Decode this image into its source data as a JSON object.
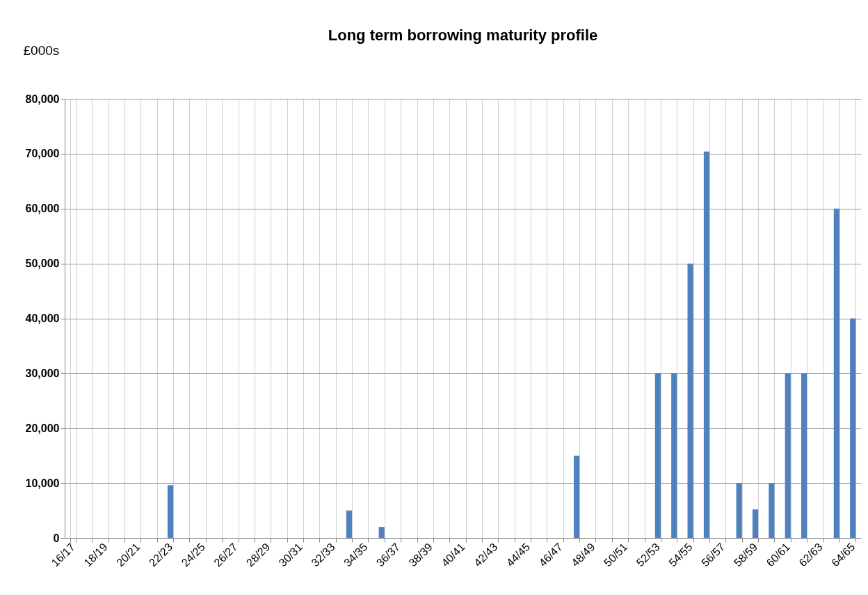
{
  "chart_data": {
    "type": "bar",
    "title": "Long term borrowing maturity profile",
    "ylabel": "£000s",
    "categories": [
      "16/17",
      null,
      "18/19",
      null,
      "20/21",
      null,
      "22/23",
      null,
      "24/25",
      null,
      "26/27",
      null,
      "28/29",
      null,
      "30/31",
      null,
      "32/33",
      null,
      "34/35",
      null,
      "36/37",
      null,
      "38/39",
      null,
      "40/41",
      null,
      "42/43",
      null,
      "44/45",
      null,
      "46/47",
      null,
      "48/49",
      null,
      "50/51",
      null,
      "52/53",
      null,
      "54/55",
      null,
      "56/57",
      null,
      "58/59",
      null,
      "60/61",
      null,
      "62/63",
      null,
      "64/65"
    ],
    "values": [
      null,
      null,
      null,
      null,
      null,
      null,
      9600,
      null,
      null,
      null,
      null,
      null,
      null,
      null,
      null,
      null,
      null,
      5000,
      null,
      2000,
      null,
      null,
      null,
      null,
      null,
      null,
      null,
      null,
      null,
      null,
      null,
      15000,
      null,
      null,
      null,
      null,
      30000,
      30000,
      50000,
      70400,
      null,
      10000,
      5200,
      10000,
      30000,
      30000,
      null,
      60000,
      40000
    ],
    "color": "#4f81bd",
    "ylim": [
      0,
      80000
    ],
    "yticks": [
      0,
      {
        "value": 10000,
        "label": "10,000"
      },
      {
        "value": 20000,
        "label": "20,000"
      },
      {
        "value": 30000,
        "label": "30,000"
      },
      {
        "value": 40000,
        "label": "40,000"
      },
      {
        "value": 50000,
        "label": "50,000"
      },
      {
        "value": 60000,
        "label": "60,000"
      },
      {
        "value": 70000,
        "label": "70,000"
      },
      {
        "value": 80000,
        "label": "80,000"
      }
    ],
    "grid": true
  }
}
